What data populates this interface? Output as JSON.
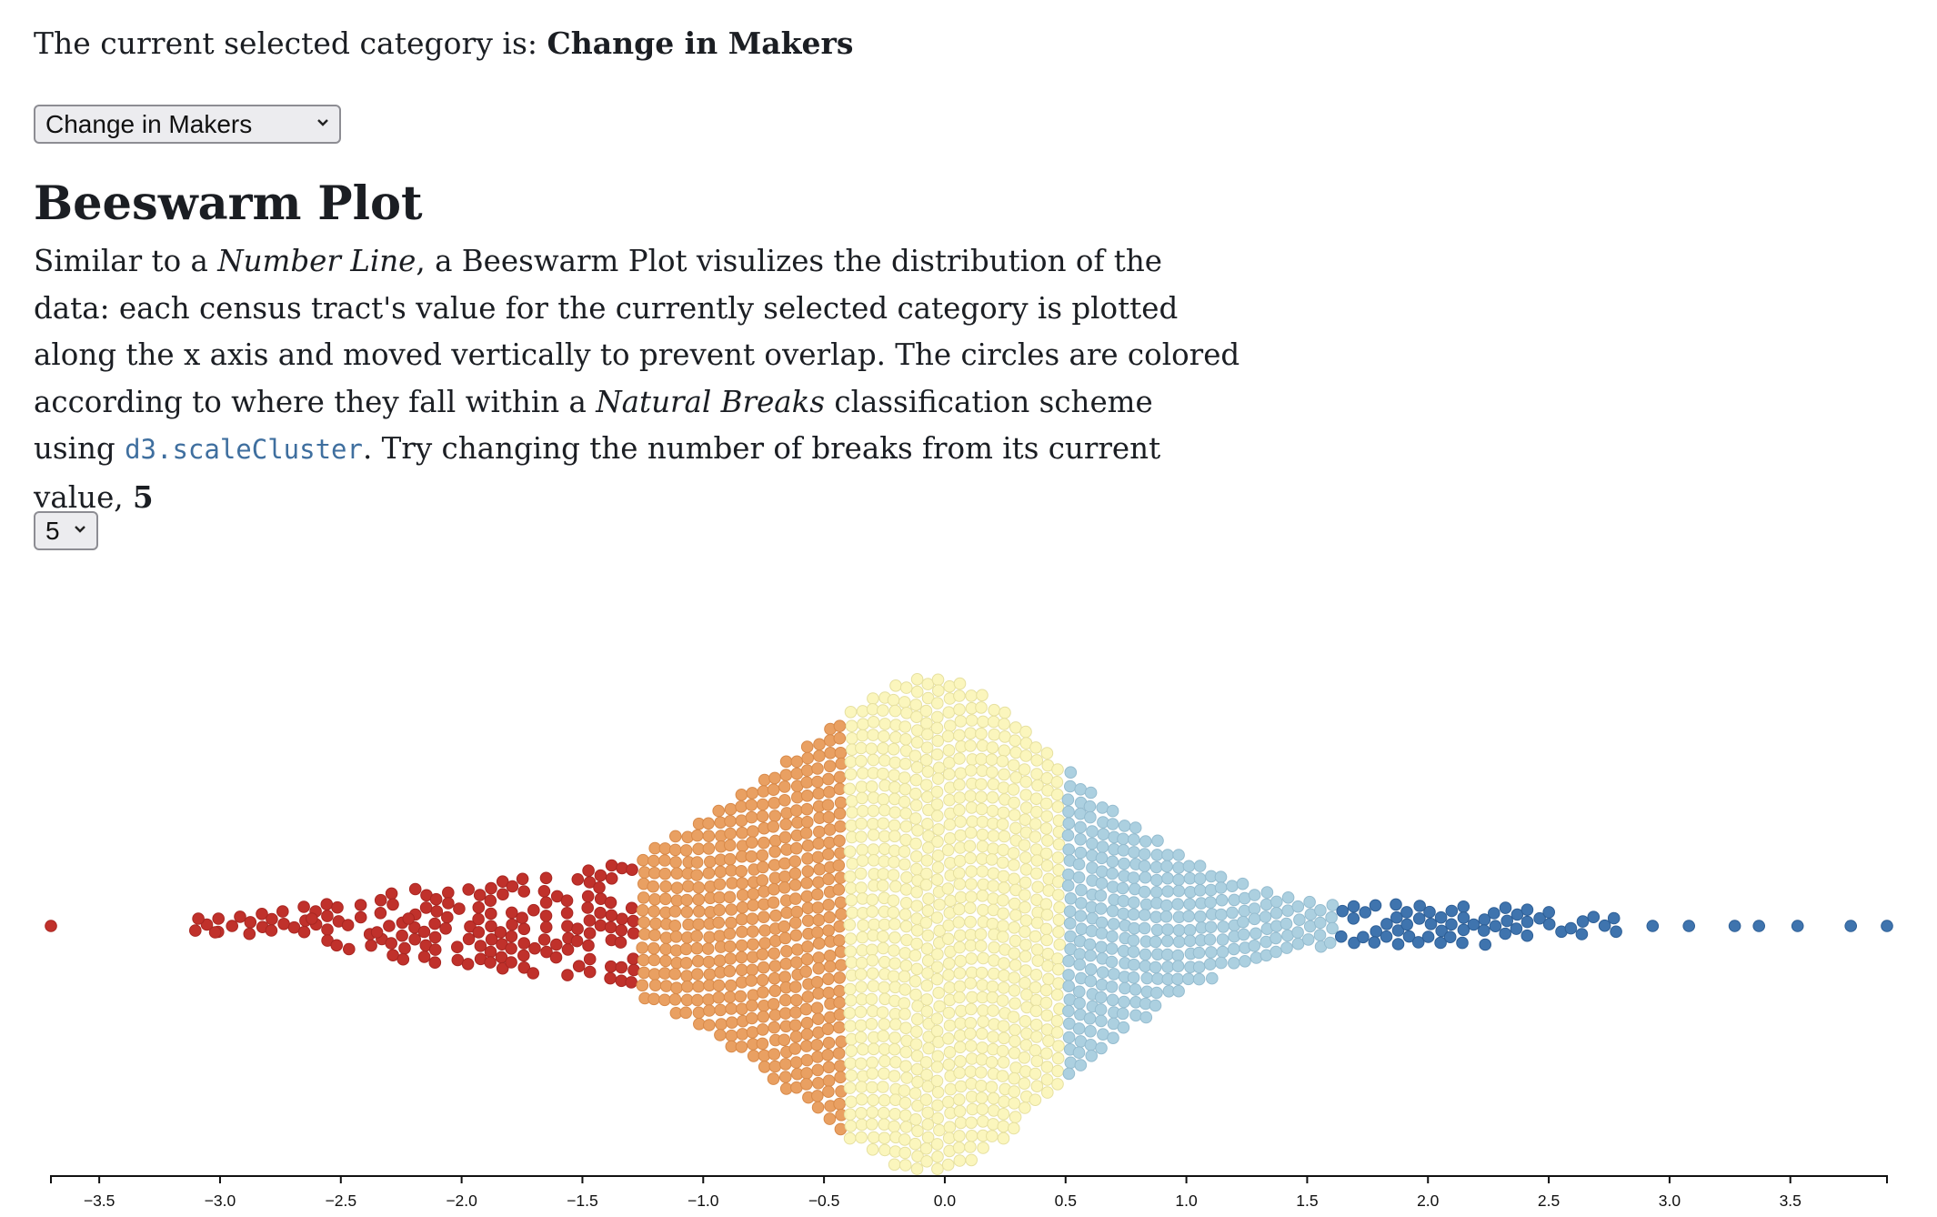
{
  "status": {
    "prefix": "The current selected category is: ",
    "category": "Change in Makers"
  },
  "category_select": {
    "selected": "Change in Makers",
    "icon": "chevron-down-icon"
  },
  "heading": "Beeswarm Plot",
  "description": {
    "p1": "Similar to a ",
    "em1": "Number Line",
    "p2": ", a Beeswarm Plot visulizes the distribution of the data: each census tract's value for the currently selected category is plotted along the x axis and moved vertically to prevent overlap. The circles are colored according to where they fall within a ",
    "em2": "Natural Breaks",
    "p3": " classification scheme using ",
    "code": "d3.scaleCluster",
    "p4": ". Try changing the number of breaks from its current value, ",
    "breaks_value": "5"
  },
  "breaks_select": {
    "selected": "5",
    "icon": "chevron-down-icon"
  },
  "colors": {
    "class_1": "#c0312b",
    "class_2": "#e9a062",
    "class_3": "#fbf6b9",
    "class_4": "#acd0e0",
    "class_5": "#3f74ae"
  },
  "chart_data": {
    "type": "scatter",
    "subtype": "beeswarm",
    "xlim": [
      -3.7,
      3.9
    ],
    "x_ticks": [
      -3.5,
      -3.0,
      -2.5,
      -2.0,
      -1.5,
      -1.0,
      -0.5,
      0.0,
      0.5,
      1.0,
      1.5,
      2.0,
      2.5,
      3.0,
      3.5
    ],
    "x_tick_labels": [
      "−3.5",
      "−3.0",
      "−2.5",
      "−2.0",
      "−1.5",
      "−1.0",
      "−0.5",
      "0.0",
      "0.5",
      "1.0",
      "1.5",
      "2.0",
      "2.5",
      "3.0",
      "3.5"
    ],
    "class_breaks": [
      -3.7,
      -1.27,
      -0.4,
      0.48,
      1.62,
      3.9
    ],
    "outlier_values": [
      -3.7,
      -3.09,
      -3.02,
      -2.95,
      -2.62,
      -2.35,
      -2.3,
      -2.22,
      2.93,
      3.08,
      3.27,
      3.37,
      3.53,
      3.75,
      3.9
    ],
    "class_densities": [
      {
        "class": 1,
        "range": [
          -3.1,
          -1.27
        ],
        "approx_count": 160,
        "peak_height": 0.35
      },
      {
        "class": 2,
        "range": [
          -1.27,
          -0.4
        ],
        "approx_count": 330,
        "peak_height": 0.75
      },
      {
        "class": 3,
        "range": [
          -0.4,
          0.48
        ],
        "approx_count": 750,
        "peak_height": 1.0
      },
      {
        "class": 4,
        "range": [
          0.48,
          1.62
        ],
        "approx_count": 300,
        "peak_height": 0.55
      },
      {
        "class": 5,
        "range": [
          1.62,
          2.8
        ],
        "approx_count": 60,
        "peak_height": 0.18
      }
    ],
    "grid": false,
    "legend": "none"
  }
}
